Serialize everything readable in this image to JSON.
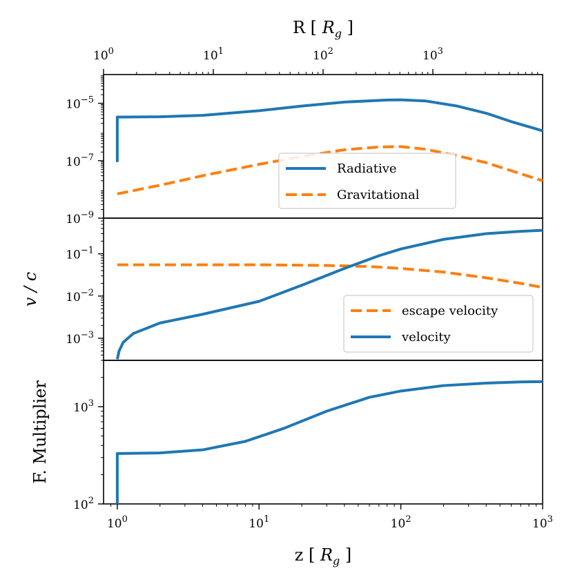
{
  "top_axis": {
    "label_main": "R [ ",
    "label_var": "R",
    "label_sub": "g",
    "label_end": " ]",
    "ticks": [
      {
        "value": 1,
        "base": "10",
        "exp": "0"
      },
      {
        "value": 10,
        "base": "10",
        "exp": "1"
      },
      {
        "value": 100,
        "base": "10",
        "exp": "2"
      },
      {
        "value": 1000,
        "base": "10",
        "exp": "3"
      }
    ],
    "range": [
      1,
      10000
    ],
    "minor_ticks": [
      2,
      3,
      4,
      5,
      6,
      7,
      8,
      9,
      20,
      30,
      40,
      50,
      60,
      70,
      80,
      90,
      200,
      300,
      400,
      500,
      600,
      700,
      800,
      900,
      2000,
      3000,
      4000,
      5000,
      6000,
      7000,
      8000,
      9000
    ]
  },
  "bottom_axis": {
    "label_main": "z [ ",
    "label_var": "R",
    "label_sub": "g",
    "label_end": " ]",
    "xlim": [
      0.8,
      1000
    ],
    "ticks": [
      {
        "value": 1,
        "base": "10",
        "exp": "0"
      },
      {
        "value": 10,
        "base": "10",
        "exp": "1"
      },
      {
        "value": 100,
        "base": "10",
        "exp": "2"
      },
      {
        "value": 1000,
        "base": "10",
        "exp": "3"
      }
    ]
  },
  "chart_data": [
    {
      "type": "line",
      "panel": "top",
      "ylabel": "",
      "yscale": "log",
      "ylim": [
        1e-09,
        0.0001
      ],
      "yticks": [
        {
          "value": 1e-05,
          "base": "10",
          "exp": "−5"
        },
        {
          "value": 1e-07,
          "base": "10",
          "exp": "−7"
        },
        {
          "value": 1e-09,
          "base": "10",
          "exp": "−9"
        }
      ],
      "legend": {
        "position": "lower-right",
        "entries": [
          "Radiative",
          "Gravitational"
        ]
      },
      "series": [
        {
          "name": "Radiative",
          "style": "solid",
          "color": "#1f77b4",
          "points": [
            [
              1,
              9e-08
            ],
            [
              1,
              3.3e-06
            ],
            [
              2,
              3.4e-06
            ],
            [
              4,
              3.8e-06
            ],
            [
              10,
              5.5e-06
            ],
            [
              20,
              8e-06
            ],
            [
              40,
              1.1e-05
            ],
            [
              80,
              1.3e-05
            ],
            [
              100,
              1.32e-05
            ],
            [
              150,
              1.2e-05
            ],
            [
              250,
              8e-06
            ],
            [
              400,
              4.5e-06
            ],
            [
              600,
              2.3e-06
            ],
            [
              1000,
              1.1e-06
            ]
          ]
        },
        {
          "name": "Gravitational",
          "style": "dashed",
          "color": "#ff7f0e",
          "points": [
            [
              1,
              7e-09
            ],
            [
              2,
              1.4e-08
            ],
            [
              4,
              3e-08
            ],
            [
              10,
              7.5e-08
            ],
            [
              20,
              1.4e-07
            ],
            [
              40,
              2.4e-07
            ],
            [
              70,
              3e-07
            ],
            [
              100,
              3.1e-07
            ],
            [
              150,
              2.5e-07
            ],
            [
              250,
              1.5e-07
            ],
            [
              400,
              8.5e-08
            ],
            [
              600,
              4.5e-08
            ],
            [
              1000,
              2e-08
            ]
          ]
        }
      ]
    },
    {
      "type": "line",
      "panel": "middle",
      "ylabel": "v / c",
      "yscale": "log",
      "ylim": [
        0.0003,
        0.7
      ],
      "yticks": [
        {
          "value": 0.1,
          "base": "10",
          "exp": "−1"
        },
        {
          "value": 0.01,
          "base": "10",
          "exp": "−2"
        },
        {
          "value": 0.001,
          "base": "10",
          "exp": "−3"
        }
      ],
      "legend": {
        "position": "lower-right",
        "entries": [
          "escape velocity",
          "velocity"
        ]
      },
      "series": [
        {
          "name": "escape velocity",
          "style": "dashed",
          "color": "#ff7f0e",
          "points": [
            [
              1,
              0.055
            ],
            [
              10,
              0.055
            ],
            [
              30,
              0.053
            ],
            [
              60,
              0.05
            ],
            [
              100,
              0.045
            ],
            [
              200,
              0.037
            ],
            [
              400,
              0.027
            ],
            [
              700,
              0.02
            ],
            [
              1000,
              0.016
            ]
          ]
        },
        {
          "name": "velocity",
          "style": "solid",
          "color": "#1f77b4",
          "points": [
            [
              1,
              0.00032
            ],
            [
              1.03,
              0.0005
            ],
            [
              1.1,
              0.0008
            ],
            [
              1.3,
              0.0013
            ],
            [
              2,
              0.0023
            ],
            [
              4,
              0.0037
            ],
            [
              10,
              0.0075
            ],
            [
              20,
              0.018
            ],
            [
              40,
              0.045
            ],
            [
              70,
              0.09
            ],
            [
              100,
              0.13
            ],
            [
              200,
              0.22
            ],
            [
              400,
              0.3
            ],
            [
              700,
              0.34
            ],
            [
              1000,
              0.36
            ]
          ]
        }
      ]
    },
    {
      "type": "line",
      "panel": "bottom",
      "ylabel": "F. Multiplier",
      "yscale": "log",
      "ylim": [
        100,
        3000
      ],
      "yticks": [
        {
          "value": 1000,
          "base": "10",
          "exp": "3"
        },
        {
          "value": 100,
          "base": "10",
          "exp": "2"
        }
      ],
      "series": [
        {
          "name": "F. Multiplier",
          "style": "solid",
          "color": "#1f77b4",
          "points": [
            [
              1,
              100
            ],
            [
              1,
              330
            ],
            [
              2,
              335
            ],
            [
              4,
              360
            ],
            [
              8,
              440
            ],
            [
              15,
              600
            ],
            [
              30,
              900
            ],
            [
              60,
              1250
            ],
            [
              100,
              1450
            ],
            [
              200,
              1650
            ],
            [
              400,
              1750
            ],
            [
              700,
              1800
            ],
            [
              1000,
              1810
            ]
          ]
        }
      ]
    }
  ]
}
